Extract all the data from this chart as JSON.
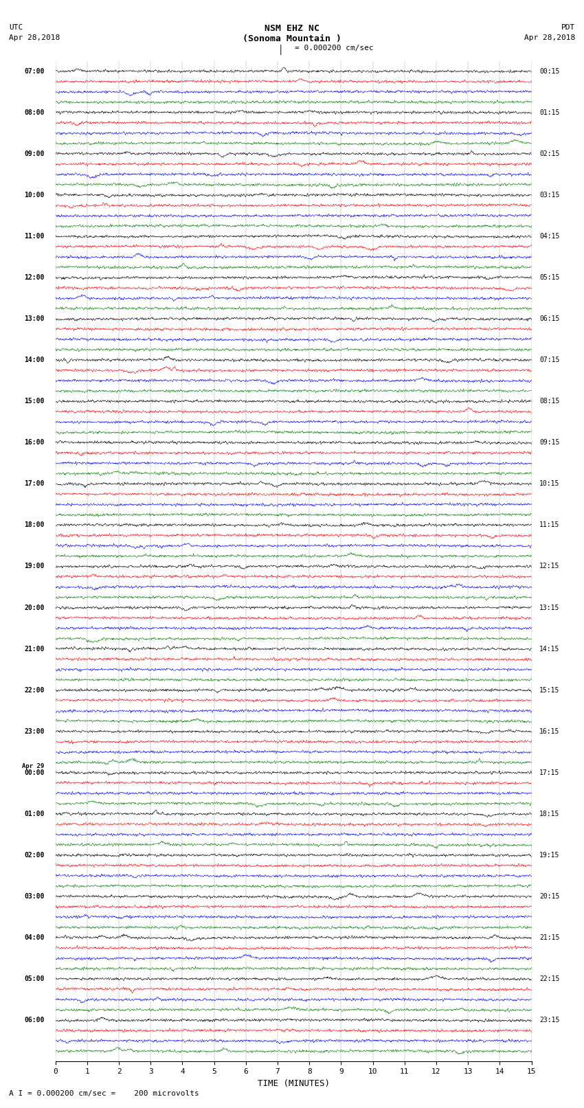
{
  "title_line1": "NSM EHZ NC",
  "title_line2": "(Sonoma Mountain )",
  "title_line3": "I = 0.000200 cm/sec",
  "label_utc": "UTC",
  "label_utc_date": "Apr 28,2018",
  "label_pdt": "PDT",
  "label_pdt_date": "Apr 28,2018",
  "xlabel": "TIME (MINUTES)",
  "footer": "A I = 0.000200 cm/sec =    200 microvolts",
  "left_labels": [
    "07:00",
    "08:00",
    "09:00",
    "10:00",
    "11:00",
    "12:00",
    "13:00",
    "14:00",
    "15:00",
    "16:00",
    "17:00",
    "18:00",
    "19:00",
    "20:00",
    "21:00",
    "22:00",
    "23:00",
    "Apr 29\n00:00",
    "01:00",
    "02:00",
    "03:00",
    "04:00",
    "05:00",
    "06:00"
  ],
  "right_labels": [
    "00:15",
    "01:15",
    "02:15",
    "03:15",
    "04:15",
    "05:15",
    "06:15",
    "07:15",
    "08:15",
    "09:15",
    "10:15",
    "11:15",
    "12:15",
    "13:15",
    "14:15",
    "15:15",
    "16:15",
    "17:15",
    "18:15",
    "19:15",
    "20:15",
    "21:15",
    "22:15",
    "23:15"
  ],
  "n_hours": 24,
  "n_channels": 4,
  "colors": [
    "black",
    "red",
    "blue",
    "green"
  ],
  "x_min": 0,
  "x_max": 15,
  "xticks": [
    0,
    1,
    2,
    3,
    4,
    5,
    6,
    7,
    8,
    9,
    10,
    11,
    12,
    13,
    14,
    15
  ],
  "bg_color": "white",
  "trace_amplitude": 0.32,
  "noise_scale": 0.1,
  "seed": 42,
  "lw": 0.4
}
